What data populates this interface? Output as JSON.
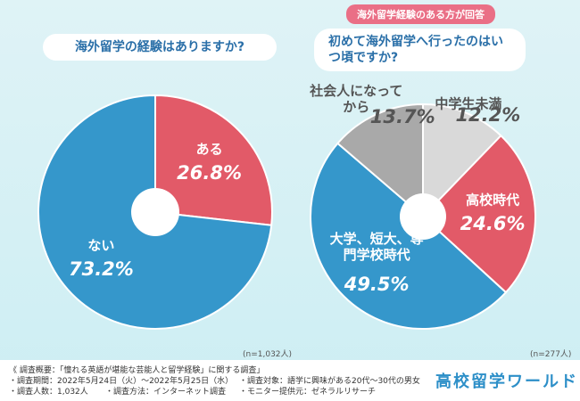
{
  "chart_data": [
    {
      "type": "pie",
      "title": "海外留学の経験はありますか?",
      "categories": [
        "ある",
        "ない"
      ],
      "values": [
        26.8,
        73.2
      ],
      "value_labels": [
        "26.8%",
        "73.2%"
      ],
      "colors": [
        "#e25a68",
        "#3597cb"
      ],
      "note": "(n=1,032人)"
    },
    {
      "type": "pie",
      "badge": "海外留学経験のある方が回答",
      "title": "初めて海外留学へ行ったのはいつ頃ですか?",
      "categories": [
        "中学生未満",
        "高校時代",
        "大学、短大、専門学校時代",
        "社会人になってから"
      ],
      "values": [
        12.2,
        24.6,
        49.5,
        13.7
      ],
      "value_labels": [
        "12.2%",
        "24.6%",
        "49.5%",
        "13.7%"
      ],
      "colors": [
        "#d9d9d9",
        "#e25a68",
        "#3597cb",
        "#a9a9a9"
      ],
      "note": "(n=277人)"
    }
  ],
  "footer": {
    "lines": [
      "《 調査概要：「憧れる英語が堪能な芸能人と留学経験」に関する調査」",
      "・調査期間：2022年5月24日（火）～2022年5月25日（水）",
      "・調査対象：語学に興味がある20代～30代の男女",
      "・調査人数：1,032人",
      "・調査方法：インターネット調査",
      "・モニター提供元：ゼネラルリサーチ"
    ],
    "logo": "高校留学ワールド"
  }
}
